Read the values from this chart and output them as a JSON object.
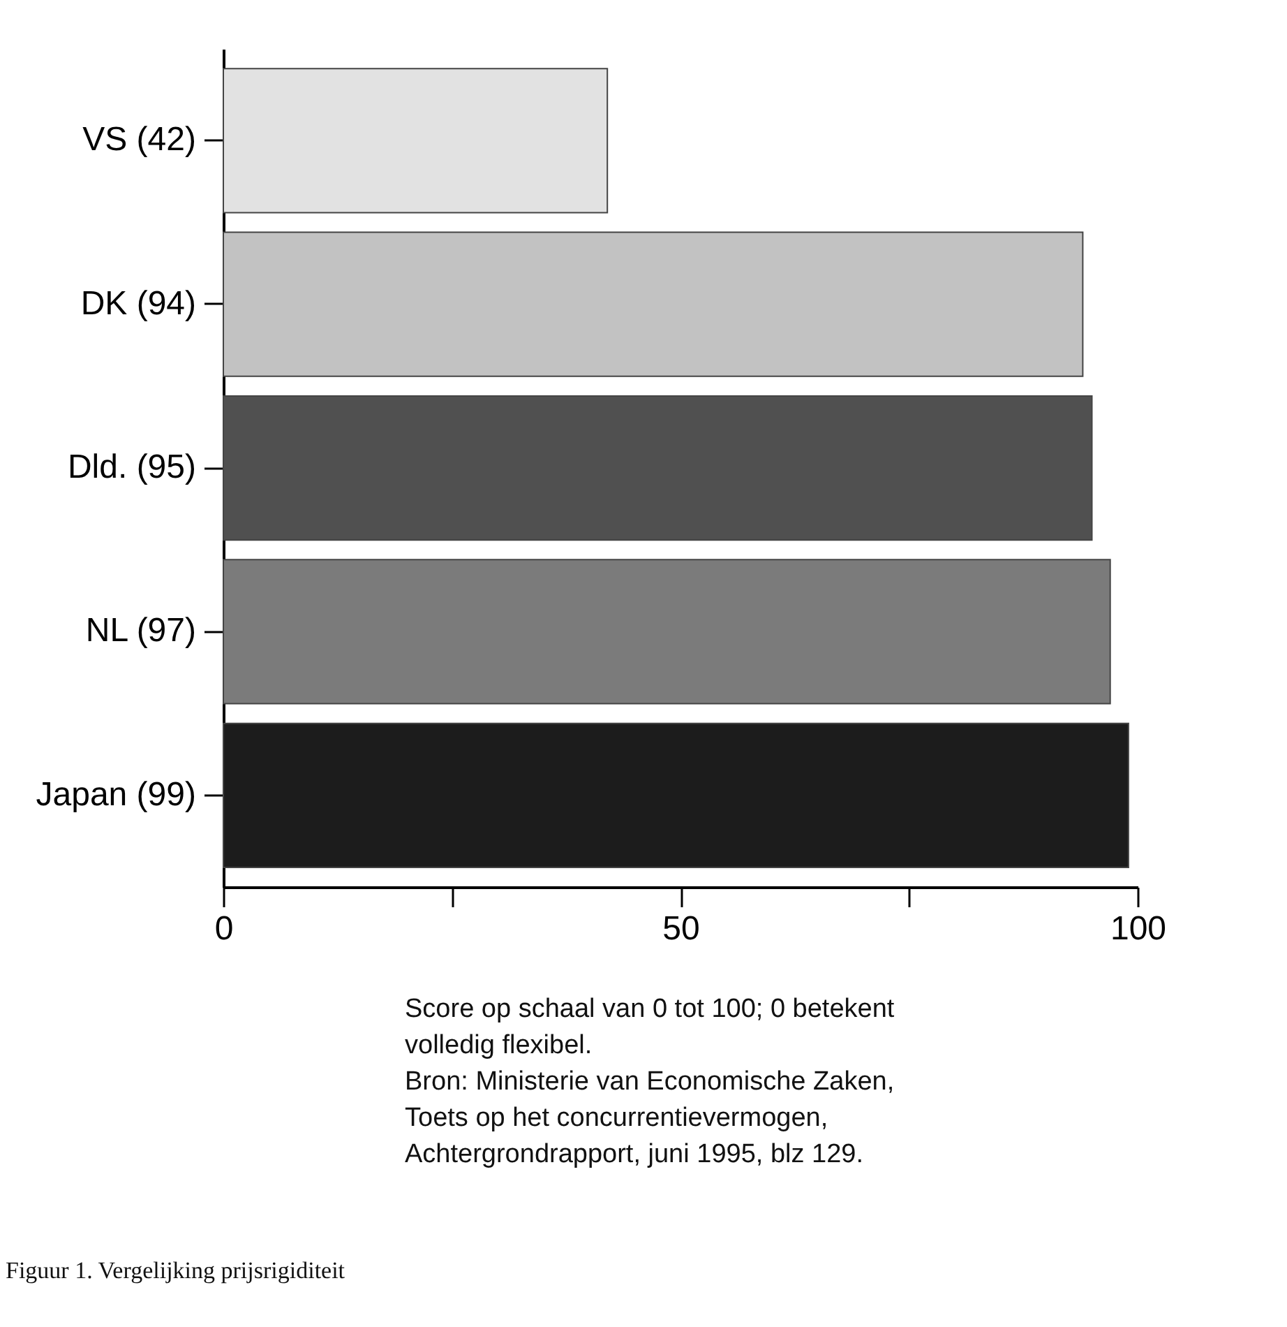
{
  "chart_data": {
    "type": "bar",
    "orientation": "horizontal",
    "categories": [
      "VS (42)",
      "DK (94)",
      "Dld. (95)",
      "NL (97)",
      "Japan (99)"
    ],
    "values": [
      42,
      94,
      95,
      97,
      99
    ],
    "colors": [
      "#e2e2e2",
      "#c2c2c2",
      "#505050",
      "#7b7b7b",
      "#1c1c1c"
    ],
    "xlim": [
      0,
      100
    ],
    "xticks": [
      0,
      {
        "value": 25,
        "label": null
      },
      50,
      {
        "value": 75,
        "label": null
      },
      100
    ],
    "grid": false,
    "legend": false,
    "annotations": [
      "Score op schaal van 0 tot 100; 0 betekent volledig flexibel.",
      "Bron: Ministerie van Economische Zaken, Toets op het concurrentievermogen, Achtergrondrapport, juni 1995, blz 129.",
      "Figuur 1. Vergelijking prijsrigiditeit"
    ]
  }
}
